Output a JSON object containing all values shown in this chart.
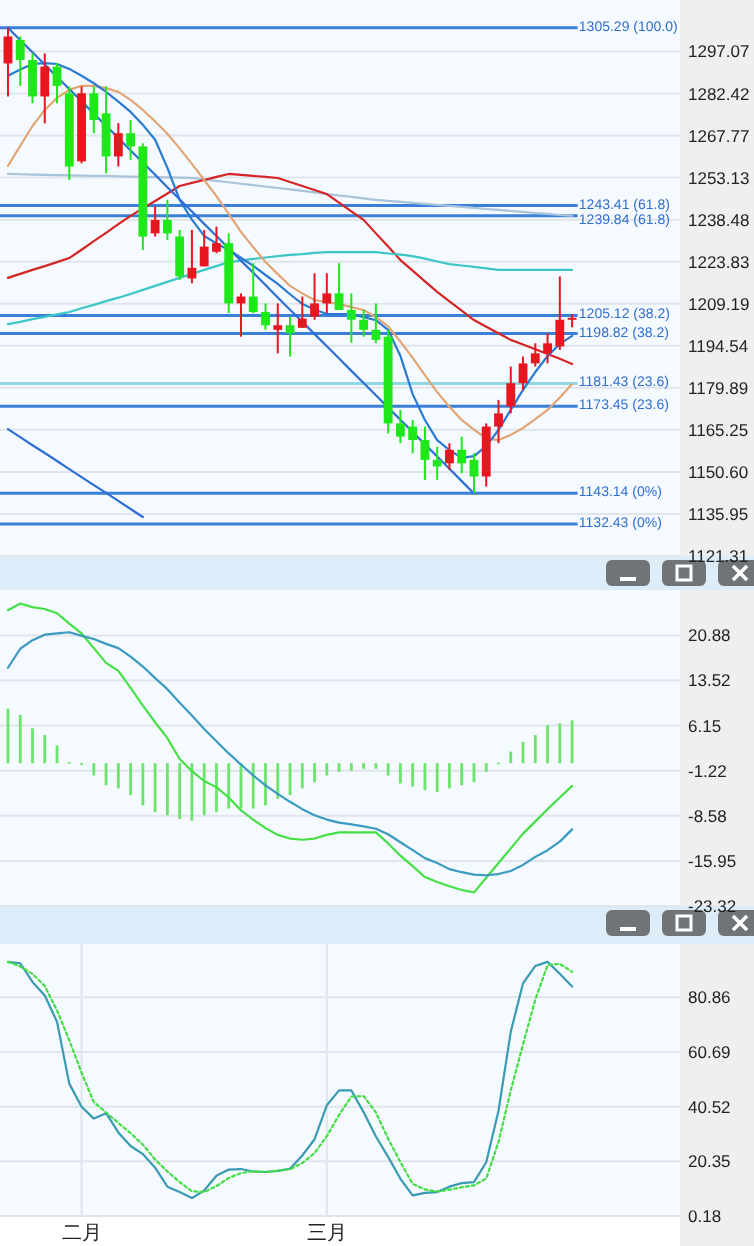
{
  "chart_data": [
    {
      "type": "candlestick",
      "tick_labels": "y",
      "grid": true,
      "categories": [
        null,
        null,
        null,
        null,
        null,
        null,
        null,
        null,
        null,
        null,
        null,
        null,
        null,
        null,
        null,
        null,
        null,
        null,
        null,
        null,
        null,
        null,
        null,
        null,
        null,
        null,
        null,
        null,
        null,
        null,
        null,
        null,
        null,
        null,
        null,
        null,
        null,
        null,
        null,
        null,
        null,
        null,
        null,
        null,
        null,
        null,
        null
      ],
      "ylim": [
        1121.31,
        1315
      ],
      "yticks": [
        1297.07,
        1282.42,
        1267.77,
        1253.13,
        1238.48,
        1223.83,
        1209.19,
        1194.54,
        1179.89,
        1165.25,
        {
          "value": 1150.6,
          "label": "1150.60"
        },
        1135.95,
        1121.31
      ],
      "ohlc": [
        [
          1292.9,
          1305.29,
          1281.4,
          1302.3
        ],
        [
          1301.1,
          1302.3,
          1285.1,
          1294.1
        ],
        [
          1294.1,
          1296.4,
          1279.0,
          1281.4
        ],
        [
          1281.4,
          1296.4,
          1272.0,
          1291.8
        ],
        [
          1291.8,
          1293.0,
          1279.0,
          1285.1
        ],
        [
          1282.5,
          1284.9,
          1252.3,
          1257.0
        ],
        [
          1258.8,
          1284.9,
          1258.1,
          1282.5
        ],
        [
          1282.5,
          1284.9,
          1268.6,
          1273.2
        ],
        [
          1275.5,
          1284.9,
          1254.6,
          1260.5
        ],
        [
          1260.5,
          1272.1,
          1257.0,
          1268.6
        ],
        [
          1268.6,
          1273.2,
          1259.3,
          1264.0
        ],
        [
          1264.0,
          1265.1,
          1227.9,
          1232.6
        ],
        [
          1233.7,
          1243.1,
          1232.6,
          1238.4
        ],
        [
          1238.4,
          1245.4,
          1231.4,
          1233.7
        ],
        [
          1232.6,
          1234.9,
          1217.5,
          1218.7
        ],
        [
          1218.0,
          1234.9,
          1216.3,
          1221.7
        ],
        [
          1222.2,
          1234.9,
          1222.2,
          1229.1
        ],
        [
          1227.3,
          1236.1,
          1226.8,
          1230.3
        ],
        [
          1230.3,
          1233.7,
          1205.9,
          1209.3
        ],
        [
          1209.3,
          1212.8,
          1197.7,
          1211.7
        ],
        [
          1211.7,
          1223.3,
          1205.9,
          1206.3
        ],
        [
          1206.3,
          1209.3,
          1200.1,
          1201.7
        ],
        [
          1200.1,
          1209.3,
          1191.9,
          1201.7
        ],
        [
          1201.7,
          1204.7,
          1190.8,
          1198.9
        ],
        [
          1200.8,
          1211.7,
          1200.8,
          1204.0
        ],
        [
          1204.7,
          1219.8,
          1203.6,
          1209.3
        ],
        [
          1209.3,
          1219.8,
          1205.9,
          1212.8
        ],
        [
          1212.8,
          1223.3,
          1207.0,
          1207.0
        ],
        [
          1207.0,
          1212.8,
          1195.6,
          1203.6
        ],
        [
          1203.6,
          1207.0,
          1197.7,
          1200.1
        ],
        [
          1200.1,
          1209.3,
          1195.5,
          1196.6
        ],
        [
          1197.7,
          1200.1,
          1164.0,
          1167.5
        ],
        [
          1167.5,
          1172.2,
          1160.6,
          1162.9
        ],
        [
          1166.4,
          1168.7,
          1157.1,
          1161.7
        ],
        [
          1161.7,
          1166.4,
          1147.8,
          1154.8
        ],
        [
          1154.8,
          1159.4,
          1147.8,
          1152.5
        ],
        [
          1153.6,
          1160.6,
          1151.3,
          1158.3
        ],
        [
          1158.3,
          1162.9,
          1150.1,
          1153.6
        ],
        [
          1154.8,
          1157.1,
          1143.14,
          1149.0
        ],
        [
          1149.0,
          1167.5,
          1145.5,
          1166.4
        ],
        [
          1166.4,
          1175.7,
          1160.6,
          1171.0
        ],
        [
          1173.4,
          1187.3,
          1171.0,
          1181.5
        ],
        [
          1181.5,
          1190.8,
          1179.2,
          1188.4
        ],
        [
          1188.4,
          1195.4,
          1187.3,
          1191.9
        ],
        [
          1191.9,
          1198.9,
          1188.4,
          1195.4
        ],
        [
          1194.3,
          1218.7,
          1193.1,
          1203.6
        ],
        [
          1203.6,
          1205.5,
          1201.0,
          1204.3
        ]
      ],
      "colors": [
        "#e8161e",
        "#1ee81a",
        "#1ee81a",
        "#e8161e",
        "#1ee81a",
        "#1ee81a",
        "#e8161e",
        "#1ee81a",
        "#1ee81a",
        "#e8161e",
        "#1ee81a",
        "#1ee81a",
        "#e8161e",
        "#1ee81a",
        "#1ee81a",
        "#e8161e",
        "#e8161e",
        "#e8161e",
        "#1ee81a",
        "#e8161e",
        "#1ee81a",
        "#1ee81a",
        "#e8161e",
        "#1ee81a",
        "#e8161e",
        "#e8161e",
        "#e8161e",
        "#1ee81a",
        "#1ee81a",
        "#1ee81a",
        "#1ee81a",
        "#1ee81a",
        "#1ee81a",
        "#1ee81a",
        "#1ee81a",
        "#1ee81a",
        "#e8161e",
        "#1ee81a",
        "#1ee81a",
        "#e8161e",
        "#e8161e",
        "#e8161e",
        "#e8161e",
        "#e8161e",
        "#e8161e",
        "#e8161e",
        "#e8161e"
      ],
      "series": [
        {
          "type": "line",
          "color": "#a9c3da",
          "values": [
            1254.4,
            1254.3,
            1254.2,
            1254.1,
            1254.0,
            1253.9,
            1253.8,
            1253.7,
            1253.7,
            1253.6,
            1253.5,
            1253.4,
            1253.3,
            1253.2,
            1253.1,
            1253.0,
            1252.5,
            1252.0,
            1251.5,
            1251.0,
            1250.5,
            1250.0,
            1249.5,
            1249.0,
            1248.5,
            1248.0,
            1247.4,
            1246.9,
            1246.4,
            1245.9,
            1245.4,
            1245.0,
            1244.7,
            1244.3,
            1244.0,
            1243.6,
            1243.3,
            1242.9,
            1242.6,
            1242.2,
            1241.9,
            1241.5,
            1241.2,
            1240.8,
            1240.5,
            1240.1,
            1239.8
          ]
        },
        {
          "type": "line",
          "color": "#d42424",
          "values": [
            1218.2,
            1219.6,
            1221.0,
            1222.3,
            1223.7,
            1225.1,
            1228.0,
            1231.0,
            1233.9,
            1236.9,
            1239.8,
            1242.4,
            1245.0,
            1247.6,
            1250.2,
            1251.3,
            1252.3,
            1253.4,
            1254.4,
            1254.1,
            1253.7,
            1253.4,
            1253.0,
            1251.6,
            1250.2,
            1248.8,
            1247.4,
            1244.4,
            1241.4,
            1238.4,
            1233.7,
            1229.1,
            1224.4,
            1220.7,
            1217.0,
            1213.3,
            1210.0,
            1206.8,
            1203.5,
            1201.2,
            1198.9,
            1196.6,
            1195.0,
            1193.3,
            1191.7,
            1190.0,
            1188.2
          ]
        },
        {
          "type": "line",
          "color": "#3cc6c6",
          "values": [
            1202.1,
            1202.9,
            1203.8,
            1204.6,
            1205.5,
            1206.3,
            1207.6,
            1208.8,
            1210.1,
            1211.3,
            1212.6,
            1214.0,
            1215.4,
            1216.8,
            1218.2,
            1219.6,
            1221.0,
            1222.3,
            1223.7,
            1224.2,
            1224.8,
            1225.3,
            1225.8,
            1226.2,
            1226.5,
            1226.9,
            1227.2,
            1227.2,
            1227.2,
            1227.2,
            1227.2,
            1226.7,
            1226.3,
            1225.8,
            1224.9,
            1223.9,
            1223.0,
            1222.5,
            1222.0,
            1221.5,
            1221.0,
            1221.0,
            1221.0,
            1221.0,
            1221.0,
            1221.0,
            1221.0
          ]
        },
        {
          "type": "line",
          "color": "#e2a676",
          "values": [
            1257.2,
            1264.2,
            1271.1,
            1276.7,
            1280.9,
            1283.7,
            1285.1,
            1285.1,
            1284.3,
            1283.0,
            1280.2,
            1276.7,
            1272.7,
            1268.4,
            1263.3,
            1257.9,
            1252.3,
            1246.7,
            1240.5,
            1234.2,
            1228.9,
            1223.7,
            1219.5,
            1215.4,
            1212.8,
            1210.5,
            1209.7,
            1209.1,
            1208.0,
            1207.0,
            1204.5,
            1201.4,
            1196.0,
            1190.3,
            1184.3,
            1178.4,
            1173.3,
            1168.7,
            1165.3,
            1162.4,
            1161.7,
            1163.5,
            1165.9,
            1169.0,
            1172.2,
            1176.5,
            1181.2
          ]
        },
        {
          "type": "line",
          "color": "#2a7ad2",
          "values": [
            1288.6,
            1290.8,
            1292.7,
            1293.0,
            1292.7,
            1291.0,
            1288.6,
            1286.0,
            1283.0,
            1279.6,
            1276.0,
            1271.5,
            1266.3,
            1256.5,
            1245.4,
            1238.5,
            1232.8,
            1230.2,
            1227.9,
            1225.2,
            1222.4,
            1219.2,
            1216.1,
            1212.5,
            1209.1,
            1207.2,
            1205.6,
            1205.6,
            1205.6,
            1204.5,
            1203.5,
            1200.1,
            1191.0,
            1177.7,
            1168.7,
            1161.7,
            1158.2,
            1155.5,
            1156.1,
            1159.6,
            1165.2,
            1172.2,
            1179.2,
            1185.4,
            1191.0,
            1195.2,
            1198.0
          ]
        },
        {
          "type": "line",
          "color": "#2e6fd6",
          "values": [
            1305.3,
            1301.0,
            1296.8,
            1292.5,
            1288.2,
            1284.0,
            1279.7,
            1275.4,
            1271.2,
            1266.9,
            1262.6,
            1258.4,
            1254.1,
            1249.8,
            1245.6,
            1241.3,
            1237.0,
            1232.8,
            1228.5,
            1224.2,
            1220.0,
            1215.7,
            1211.4,
            1207.1,
            1202.9,
            1198.6,
            1194.4,
            1190.1,
            1185.8,
            1181.6,
            1177.3,
            1173.0,
            1168.8,
            1164.5,
            1160.2,
            1156.0,
            1151.7,
            1147.4,
            1143.1,
            null,
            null,
            null,
            null,
            null,
            null,
            null,
            null
          ]
        },
        {
          "type": "line",
          "color": "#2e6fd6",
          "values": [
            1165.5,
            1162.7,
            1159.9,
            1157.2,
            1154.4,
            1151.6,
            1148.8,
            1146.0,
            1143.3,
            1140.5,
            1137.7,
            1134.9,
            null,
            null,
            null,
            null,
            null,
            null,
            null,
            null,
            null,
            null,
            null,
            null,
            null,
            null,
            null,
            null,
            null,
            null,
            null,
            null,
            null,
            null,
            null,
            null,
            null,
            null,
            null,
            null,
            null,
            null,
            null,
            null,
            null,
            null,
            null
          ]
        }
      ],
      "ref_lines": [
        {
          "axis": "y",
          "value": 1305.29,
          "label": "1305.29 (100.0)",
          "color": "#3a7fd8"
        },
        {
          "axis": "y",
          "value": 1243.41,
          "label": "1243.41 (61.8)",
          "color": "#3a7fd8"
        },
        {
          "axis": "y",
          "value": 1239.84,
          "label": "1239.84 (61.8)",
          "color": "#3a7fd8"
        },
        {
          "axis": "y",
          "value": 1205.12,
          "label": "1205.12 (38.2)",
          "color": "#3a7fd8"
        },
        {
          "axis": "y",
          "value": 1198.82,
          "label": "1198.82 (38.2)",
          "color": "#3a7fd8"
        },
        {
          "axis": "y",
          "value": 1181.43,
          "label": "1181.43 (23.6)",
          "color": "#8fd6e6"
        },
        {
          "axis": "y",
          "value": 1173.45,
          "label": "1173.45 (23.6)",
          "color": "#3a7fd8"
        },
        {
          "axis": "y",
          "value": 1143.14,
          "label": "1143.14 (0%)",
          "color": "#3a7fd8"
        },
        {
          "axis": "y",
          "value": 1132.43,
          "label": "1132.43 (0%)",
          "color": "#3a7fd8"
        }
      ]
    },
    {
      "type": "line",
      "tick_labels": "y",
      "grid": true,
      "categories": [
        null,
        null,
        null,
        null,
        null,
        null,
        null,
        null,
        null,
        null,
        null,
        null,
        null,
        null,
        null,
        null,
        null,
        null,
        null,
        null,
        null,
        null,
        null,
        null,
        null,
        null,
        null,
        null,
        null,
        null,
        null,
        null,
        null,
        null,
        null,
        null,
        null,
        null,
        null,
        null,
        null,
        null,
        null,
        null,
        null,
        null,
        null
      ],
      "ylim": [
        -23.32,
        28.3
      ],
      "yticks": [
        20.88,
        13.52,
        6.15,
        -1.22,
        -8.58,
        -15.95,
        -23.32
      ],
      "series": [
        {
          "type": "bar",
          "color": "#6ce46c",
          "values": [
            8.9,
            7.9,
            5.7,
            4.6,
            2.9,
            0.2,
            -0.3,
            -2.0,
            -3.6,
            -4.1,
            -5.2,
            -6.9,
            -8.0,
            -8.5,
            -9.1,
            -9.4,
            -8.5,
            -8.0,
            -7.4,
            -7.4,
            -7.4,
            -6.9,
            -5.8,
            -5.2,
            -4.1,
            -3.1,
            -2.0,
            -1.4,
            -1.2,
            -0.9,
            -0.9,
            -2.0,
            -3.3,
            -3.8,
            -4.4,
            -4.7,
            -4.1,
            -3.6,
            -3.1,
            -1.4,
            0.1,
            1.9,
            3.5,
            4.6,
            6.2,
            6.5,
            7.0
          ]
        },
        {
          "type": "line",
          "color": "#46e046",
          "values": [
            25.0,
            26.1,
            25.5,
            25.2,
            24.5,
            22.8,
            21.2,
            18.8,
            16.4,
            15.1,
            12.3,
            9.4,
            6.7,
            4.1,
            0.7,
            -1.3,
            -2.9,
            -3.9,
            -5.6,
            -7.7,
            -9.2,
            -10.6,
            -11.7,
            -12.3,
            -12.5,
            -12.3,
            -11.7,
            -11.3,
            -11.3,
            -11.3,
            -11.3,
            -13.1,
            -15.1,
            -16.8,
            -18.6,
            -19.4,
            -20.1,
            -20.7,
            -21.1,
            -18.7,
            -16.3,
            -13.9,
            -11.5,
            -9.5,
            -7.5,
            -5.6,
            -3.7
          ]
        },
        {
          "type": "line",
          "color": "#3a9abf",
          "values": [
            15.6,
            18.7,
            20.1,
            21.0,
            21.2,
            21.4,
            20.8,
            20.3,
            19.5,
            18.8,
            17.4,
            15.8,
            13.9,
            12.1,
            9.9,
            7.8,
            5.6,
            3.6,
            1.6,
            -0.2,
            -2.0,
            -3.6,
            -5.0,
            -6.3,
            -7.5,
            -8.5,
            -9.2,
            -9.7,
            -10.0,
            -10.3,
            -10.7,
            -11.6,
            -12.9,
            -14.2,
            -15.5,
            -16.3,
            -17.3,
            -17.8,
            -18.2,
            -18.3,
            -18.1,
            -17.6,
            -16.6,
            -15.3,
            -14.2,
            -12.8,
            -10.8
          ]
        }
      ]
    },
    {
      "type": "line",
      "grid": true,
      "categories": [
        null,
        null,
        null,
        null,
        null,
        null,
        "二月",
        null,
        null,
        null,
        null,
        null,
        null,
        null,
        null,
        null,
        null,
        null,
        null,
        null,
        null,
        null,
        null,
        null,
        null,
        null,
        "三月",
        null,
        null,
        null,
        null,
        null,
        null,
        null,
        null,
        null,
        null,
        null,
        null,
        null,
        null,
        null,
        null,
        null,
        null,
        null,
        null
      ],
      "ylim": [
        0.18,
        100.5
      ],
      "yticks": [
        80.86,
        60.69,
        40.52,
        20.35,
        0.18
      ],
      "series": [
        {
          "color": "#3a9ab2",
          "line_style": "solid",
          "values": [
            93.9,
            93.4,
            86.5,
            81.5,
            71.8,
            49.0,
            40.5,
            36.1,
            38.1,
            31.0,
            26.0,
            23.0,
            18.0,
            11.0,
            9.0,
            6.8,
            9.6,
            15.0,
            17.3,
            17.5,
            16.6,
            16.4,
            16.8,
            17.6,
            22.5,
            28.5,
            41.0,
            46.5,
            46.5,
            38.5,
            29.5,
            22.0,
            13.9,
            7.8,
            8.7,
            9.0,
            11.0,
            12.3,
            12.7,
            20.0,
            39.0,
            68.1,
            86.0,
            92.4,
            93.9,
            89.5,
            84.8
          ]
        },
        {
          "color": "#44dd44",
          "line_style": "dotted",
          "values": [
            93.9,
            92.2,
            89.5,
            85.0,
            76.0,
            65.0,
            53.0,
            42.2,
            38.4,
            34.5,
            30.7,
            26.5,
            21.0,
            16.6,
            12.7,
            9.3,
            9.0,
            11.2,
            14.2,
            16.0,
            16.7,
            16.4,
            16.9,
            17.4,
            19.7,
            23.4,
            29.6,
            37.5,
            44.2,
            44.4,
            38.4,
            28.7,
            20.1,
            12.0,
            10.0,
            9.2,
            9.9,
            10.8,
            11.5,
            14.0,
            27.5,
            46.5,
            63.5,
            80.0,
            92.7,
            93.2,
            90.2
          ]
        }
      ]
    }
  ]
}
